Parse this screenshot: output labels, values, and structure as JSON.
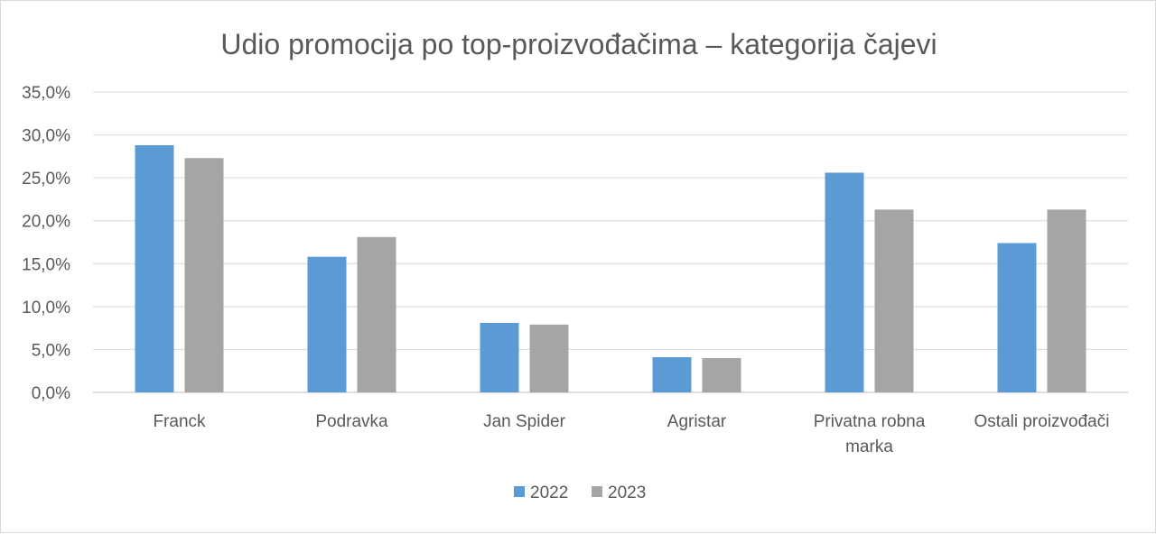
{
  "chart_data": {
    "type": "bar",
    "title": "Udio promocija po top-proizvođačima – kategorija čajevi",
    "xlabel": "",
    "ylabel": "",
    "ylim": [
      0,
      35
    ],
    "yticks": [
      "0,0%",
      "5,0%",
      "10,0%",
      "15,0%",
      "20,0%",
      "25,0%",
      "30,0%",
      "35,0%"
    ],
    "grid": true,
    "legend_position": "bottom",
    "categories": [
      "Franck",
      "Podravka",
      "Jan Spider",
      "Agristar",
      "Privatna robna marka",
      "Ostali proizvođači"
    ],
    "category_lines": [
      [
        "Franck"
      ],
      [
        "Podravka"
      ],
      [
        "Jan Spider"
      ],
      [
        "Agristar"
      ],
      [
        "Privatna robna",
        "marka"
      ],
      [
        "Ostali proizvođači"
      ]
    ],
    "series": [
      {
        "name": "2022",
        "color": "#5b9bd5",
        "values": [
          28.8,
          15.8,
          8.1,
          4.1,
          25.6,
          17.4
        ]
      },
      {
        "name": "2023",
        "color": "#a5a5a5",
        "values": [
          27.3,
          18.1,
          7.9,
          4.0,
          21.3,
          21.3
        ]
      }
    ]
  }
}
